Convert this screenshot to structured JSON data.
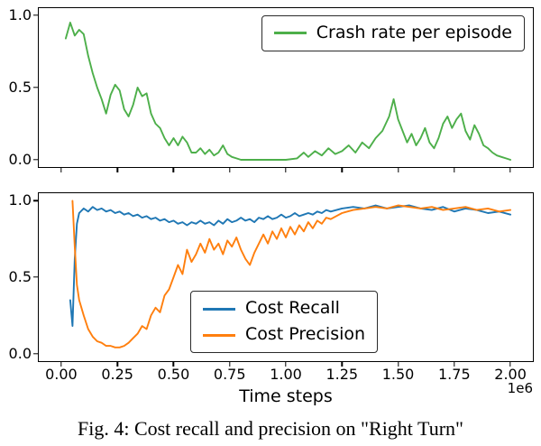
{
  "figure": {
    "caption": "Fig. 4: Cost recall and precision on \"Right Turn\""
  },
  "chart_data": [
    {
      "type": "line",
      "title": "",
      "xlabel": "",
      "ylabel": "",
      "xlim": [
        0,
        2
      ],
      "ylim": [
        0,
        1
      ],
      "grid": false,
      "legend_position": "upper right",
      "x_tick_values": [
        0,
        0.25,
        0.5,
        0.75,
        1,
        1.25,
        1.5,
        1.75,
        2
      ],
      "x_tick_labels": [
        "0.00",
        "0.25",
        "0.50",
        "0.75",
        "1.00",
        "1.25",
        "1.50",
        "1.75",
        "2.00"
      ],
      "show_x_tick_labels": false,
      "y_tick_values": [
        0,
        0.5,
        1
      ],
      "y_tick_labels": [
        "0.0",
        "0.5",
        "1.0"
      ],
      "series": [
        {
          "name": "Crash rate per episode",
          "color": "#4daf4a",
          "x": [
            0.02,
            0.04,
            0.06,
            0.08,
            0.1,
            0.12,
            0.14,
            0.16,
            0.18,
            0.2,
            0.22,
            0.24,
            0.26,
            0.28,
            0.3,
            0.32,
            0.34,
            0.36,
            0.38,
            0.4,
            0.42,
            0.44,
            0.46,
            0.48,
            0.5,
            0.52,
            0.54,
            0.56,
            0.58,
            0.6,
            0.62,
            0.64,
            0.66,
            0.68,
            0.7,
            0.72,
            0.74,
            0.76,
            0.78,
            0.8,
            0.85,
            0.9,
            0.95,
            1.0,
            1.05,
            1.08,
            1.1,
            1.13,
            1.16,
            1.19,
            1.22,
            1.25,
            1.28,
            1.31,
            1.34,
            1.37,
            1.4,
            1.43,
            1.46,
            1.48,
            1.5,
            1.52,
            1.54,
            1.56,
            1.58,
            1.6,
            1.62,
            1.64,
            1.66,
            1.68,
            1.7,
            1.72,
            1.74,
            1.76,
            1.78,
            1.8,
            1.82,
            1.84,
            1.86,
            1.88,
            1.9,
            1.92,
            1.94,
            1.96,
            1.98,
            2.0
          ],
          "y": [
            0.84,
            0.95,
            0.86,
            0.9,
            0.87,
            0.72,
            0.6,
            0.5,
            0.42,
            0.32,
            0.45,
            0.52,
            0.48,
            0.35,
            0.3,
            0.38,
            0.5,
            0.44,
            0.46,
            0.32,
            0.25,
            0.22,
            0.15,
            0.1,
            0.15,
            0.1,
            0.16,
            0.12,
            0.05,
            0.05,
            0.08,
            0.04,
            0.07,
            0.03,
            0.05,
            0.1,
            0.04,
            0.02,
            0.01,
            0.0,
            0.0,
            0.0,
            0.0,
            0.0,
            0.01,
            0.05,
            0.02,
            0.06,
            0.03,
            0.08,
            0.04,
            0.06,
            0.1,
            0.05,
            0.12,
            0.08,
            0.15,
            0.2,
            0.3,
            0.42,
            0.28,
            0.2,
            0.12,
            0.18,
            0.1,
            0.15,
            0.22,
            0.12,
            0.08,
            0.15,
            0.25,
            0.3,
            0.22,
            0.28,
            0.32,
            0.2,
            0.14,
            0.24,
            0.18,
            0.1,
            0.08,
            0.05,
            0.03,
            0.02,
            0.01,
            0.0
          ]
        }
      ]
    },
    {
      "type": "line",
      "title": "",
      "xlabel": "Time steps",
      "x_offset_label": "1e6",
      "ylabel": "",
      "xlim": [
        0,
        2
      ],
      "ylim": [
        0,
        1
      ],
      "grid": false,
      "legend_position": "lower center",
      "x_tick_values": [
        0,
        0.25,
        0.5,
        0.75,
        1,
        1.25,
        1.5,
        1.75,
        2
      ],
      "x_tick_labels": [
        "0.00",
        "0.25",
        "0.50",
        "0.75",
        "1.00",
        "1.25",
        "1.50",
        "1.75",
        "2.00"
      ],
      "show_x_tick_labels": true,
      "y_tick_values": [
        0,
        0.5,
        1
      ],
      "y_tick_labels": [
        "0.0",
        "0.5",
        "1.0"
      ],
      "series": [
        {
          "name": "Cost Recall",
          "color": "#1f77b4",
          "x": [
            0.04,
            0.05,
            0.06,
            0.07,
            0.08,
            0.1,
            0.12,
            0.14,
            0.16,
            0.18,
            0.2,
            0.22,
            0.24,
            0.26,
            0.28,
            0.3,
            0.32,
            0.34,
            0.36,
            0.38,
            0.4,
            0.42,
            0.44,
            0.46,
            0.48,
            0.5,
            0.52,
            0.54,
            0.56,
            0.58,
            0.6,
            0.62,
            0.64,
            0.66,
            0.68,
            0.7,
            0.72,
            0.74,
            0.76,
            0.78,
            0.8,
            0.82,
            0.84,
            0.86,
            0.88,
            0.9,
            0.92,
            0.94,
            0.96,
            0.98,
            1.0,
            1.02,
            1.04,
            1.06,
            1.08,
            1.1,
            1.12,
            1.14,
            1.16,
            1.18,
            1.2,
            1.25,
            1.3,
            1.35,
            1.4,
            1.45,
            1.5,
            1.55,
            1.6,
            1.65,
            1.7,
            1.75,
            1.8,
            1.85,
            1.9,
            1.95,
            2.0
          ],
          "y": [
            0.35,
            0.18,
            0.62,
            0.85,
            0.92,
            0.95,
            0.93,
            0.96,
            0.94,
            0.95,
            0.93,
            0.94,
            0.92,
            0.93,
            0.91,
            0.92,
            0.9,
            0.91,
            0.89,
            0.9,
            0.88,
            0.89,
            0.87,
            0.88,
            0.86,
            0.87,
            0.85,
            0.86,
            0.84,
            0.86,
            0.85,
            0.87,
            0.85,
            0.86,
            0.84,
            0.87,
            0.85,
            0.88,
            0.86,
            0.87,
            0.89,
            0.87,
            0.88,
            0.86,
            0.89,
            0.88,
            0.9,
            0.88,
            0.89,
            0.91,
            0.89,
            0.9,
            0.92,
            0.9,
            0.91,
            0.92,
            0.91,
            0.93,
            0.92,
            0.94,
            0.93,
            0.95,
            0.96,
            0.95,
            0.97,
            0.95,
            0.96,
            0.97,
            0.95,
            0.94,
            0.96,
            0.93,
            0.95,
            0.94,
            0.92,
            0.93,
            0.91
          ]
        },
        {
          "name": "Cost Precision",
          "color": "#ff7f0e",
          "x": [
            0.05,
            0.06,
            0.07,
            0.08,
            0.09,
            0.1,
            0.12,
            0.14,
            0.16,
            0.18,
            0.2,
            0.22,
            0.24,
            0.26,
            0.28,
            0.3,
            0.32,
            0.34,
            0.36,
            0.38,
            0.4,
            0.42,
            0.44,
            0.46,
            0.48,
            0.5,
            0.52,
            0.54,
            0.56,
            0.58,
            0.6,
            0.62,
            0.64,
            0.66,
            0.68,
            0.7,
            0.72,
            0.74,
            0.76,
            0.78,
            0.8,
            0.82,
            0.84,
            0.86,
            0.88,
            0.9,
            0.92,
            0.94,
            0.96,
            0.98,
            1.0,
            1.02,
            1.04,
            1.06,
            1.08,
            1.1,
            1.12,
            1.14,
            1.16,
            1.18,
            1.2,
            1.25,
            1.3,
            1.35,
            1.4,
            1.45,
            1.5,
            1.55,
            1.6,
            1.65,
            1.7,
            1.75,
            1.8,
            1.85,
            1.9,
            1.95,
            2.0
          ],
          "y": [
            1.0,
            0.7,
            0.45,
            0.35,
            0.3,
            0.25,
            0.16,
            0.11,
            0.08,
            0.07,
            0.05,
            0.05,
            0.04,
            0.04,
            0.05,
            0.07,
            0.1,
            0.13,
            0.18,
            0.16,
            0.25,
            0.3,
            0.27,
            0.38,
            0.42,
            0.5,
            0.58,
            0.52,
            0.68,
            0.6,
            0.65,
            0.72,
            0.66,
            0.75,
            0.68,
            0.72,
            0.65,
            0.74,
            0.7,
            0.76,
            0.68,
            0.62,
            0.58,
            0.66,
            0.72,
            0.78,
            0.72,
            0.8,
            0.75,
            0.82,
            0.76,
            0.83,
            0.78,
            0.84,
            0.8,
            0.86,
            0.82,
            0.87,
            0.85,
            0.89,
            0.88,
            0.92,
            0.94,
            0.95,
            0.96,
            0.95,
            0.97,
            0.96,
            0.95,
            0.96,
            0.94,
            0.95,
            0.96,
            0.94,
            0.95,
            0.93,
            0.94
          ]
        }
      ]
    }
  ]
}
